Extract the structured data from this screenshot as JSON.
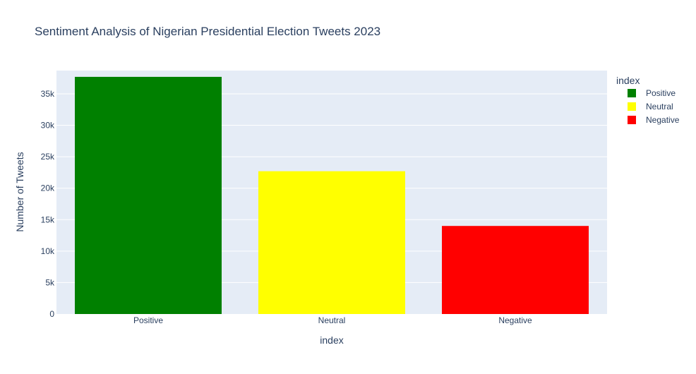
{
  "chart_data": {
    "type": "bar",
    "title": "Sentiment Analysis of Nigerian Presidential Election Tweets 2023",
    "xlabel": "index",
    "ylabel": "Number of Tweets",
    "categories": [
      "Positive",
      "Neutral",
      "Negative"
    ],
    "values": [
      37700,
      22700,
      14000
    ],
    "colors": [
      "#008000",
      "#ffff00",
      "#ff0000"
    ],
    "ylim": [
      0,
      38700
    ],
    "yticks": [
      0,
      5000,
      10000,
      15000,
      20000,
      25000,
      30000,
      35000
    ],
    "ytick_labels": [
      "0",
      "5k",
      "10k",
      "15k",
      "20k",
      "25k",
      "30k",
      "35k"
    ],
    "grid": true,
    "plot_background": "#e5ecf6",
    "legend": {
      "title": "index",
      "placement": "top-right",
      "entries": [
        "Positive",
        "Neutral",
        "Negative"
      ]
    }
  }
}
